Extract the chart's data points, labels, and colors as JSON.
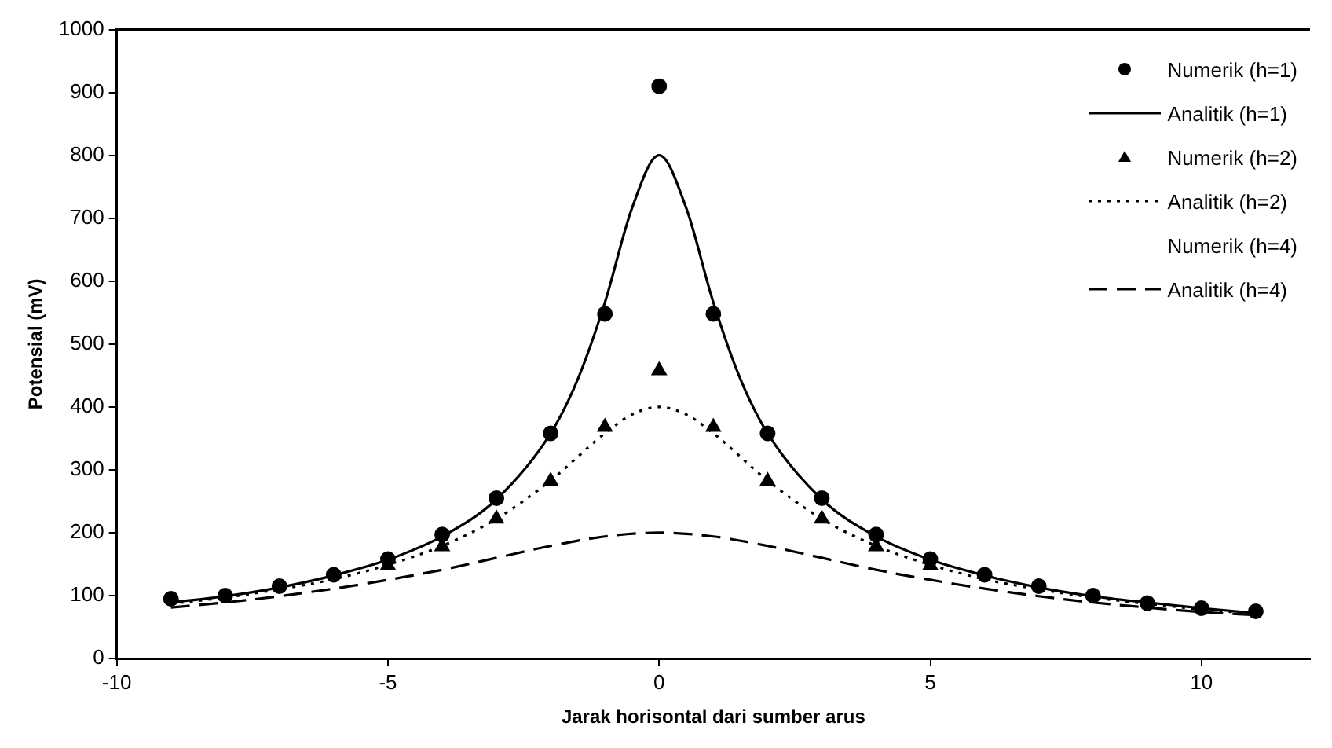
{
  "chart_data": {
    "type": "line",
    "xlabel": "Jarak horisontal dari sumber arus",
    "ylabel": "Potensial (mV)",
    "xlim": [
      -10,
      12
    ],
    "xticks": [
      -10,
      -5,
      0,
      5,
      10
    ],
    "ylim": [
      0,
      1000
    ],
    "yticks": [
      0,
      100,
      200,
      300,
      400,
      500,
      600,
      700,
      800,
      900,
      1000
    ],
    "grid": false,
    "legend": "top right",
    "series": [
      {
        "name": "Numerik (h=1)",
        "type": "scatter",
        "marker": "circle",
        "color": "#000000",
        "x": [
          -9,
          -8,
          -7,
          -6,
          -5,
          -4,
          -3,
          -2,
          -1,
          0,
          1,
          2,
          3,
          4,
          5,
          6,
          7,
          8,
          9,
          10,
          11
        ],
        "values": [
          95,
          100,
          115,
          133,
          158,
          197,
          255,
          358,
          548,
          910,
          548,
          358,
          255,
          197,
          158,
          133,
          115,
          100,
          88,
          80,
          75
        ]
      },
      {
        "name": "Analitik (h=1)",
        "marker": "none",
        "line_style": "solid",
        "color": "#000000",
        "x": [
          -9,
          -8,
          -7,
          -6,
          -5,
          -4,
          -3,
          -2,
          -1.5,
          -1,
          -0.5,
          0,
          0.5,
          1,
          1.5,
          2,
          3,
          4,
          5,
          6,
          7,
          8,
          9,
          10,
          11
        ],
        "values": [
          89,
          99,
          113,
          132,
          157,
          194,
          253,
          358,
          444,
          566,
          716,
          800,
          716,
          566,
          444,
          358,
          253,
          194,
          157,
          132,
          113,
          99,
          89,
          80,
          72
        ]
      },
      {
        "name": "Numerik (h=2)",
        "type": "scatter",
        "marker": "triangle",
        "color": "#000000",
        "x": [
          -5,
          -4,
          -3,
          -2,
          -1,
          0,
          1,
          2,
          3,
          4,
          5
        ],
        "values": [
          148,
          178,
          222,
          282,
          368,
          458,
          368,
          282,
          222,
          178,
          148
        ]
      },
      {
        "name": "Analitik (h=2)",
        "marker": "none",
        "line_style": "dotted",
        "color": "#000000",
        "x": [
          -9,
          -8,
          -7,
          -6,
          -5,
          -4,
          -3,
          -2,
          -1,
          -0.5,
          0,
          0.5,
          1,
          2,
          3,
          4,
          5,
          6,
          7,
          8,
          9,
          10,
          11
        ],
        "values": [
          87,
          97,
          110,
          126,
          149,
          179,
          222,
          283,
          358,
          388,
          400,
          388,
          358,
          283,
          222,
          179,
          149,
          126,
          110,
          97,
          87,
          78,
          71
        ]
      },
      {
        "name": "Numerik (h=4)",
        "type": "scatter",
        "marker": "none",
        "color": "#000000"
      },
      {
        "name": "Analitik (h=4)",
        "marker": "none",
        "line_style": "dashed",
        "color": "#000000",
        "x": [
          -9,
          -8,
          -7,
          -6,
          -5,
          -4,
          -3,
          -2,
          -1,
          0,
          1,
          2,
          3,
          4,
          5,
          6,
          7,
          8,
          9,
          10,
          11
        ],
        "values": [
          81,
          89,
          99,
          111,
          125,
          141,
          160,
          179,
          194,
          200,
          194,
          179,
          160,
          141,
          125,
          111,
          99,
          89,
          81,
          74,
          69
        ]
      }
    ]
  }
}
